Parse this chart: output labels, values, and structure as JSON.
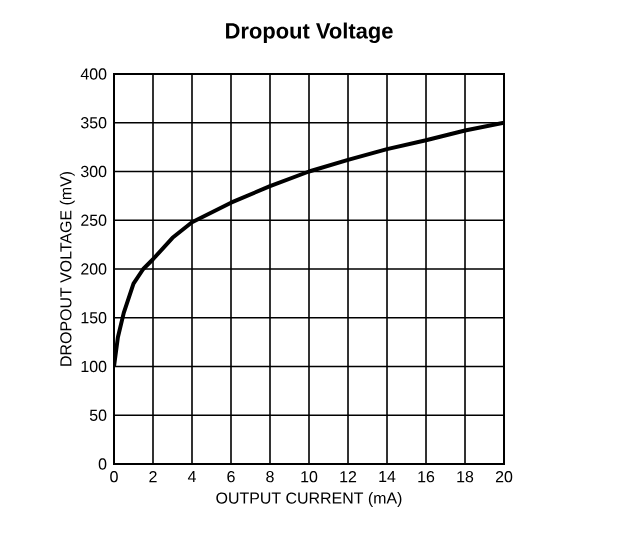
{
  "chart_data": {
    "type": "line",
    "title": "Dropout Voltage",
    "xlabel": "OUTPUT CURRENT (mA)",
    "ylabel": "DROPOUT VOLTAGE (mV)",
    "x": [
      0,
      0.2,
      0.5,
      1,
      1.5,
      2,
      3,
      4,
      6,
      8,
      10,
      12,
      14,
      16,
      18,
      20
    ],
    "series": [
      {
        "color": "#000000",
        "values": [
          100,
          130,
          155,
          185,
          200,
          210,
          232,
          248,
          268,
          285,
          300,
          312,
          323,
          332,
          342,
          350
        ]
      }
    ],
    "xlim": [
      0,
      20
    ],
    "ylim": [
      0,
      400
    ],
    "xticks": [
      0,
      2,
      4,
      6,
      8,
      10,
      12,
      14,
      16,
      18,
      20
    ],
    "yticks": [
      0,
      50,
      100,
      150,
      200,
      250,
      300,
      350,
      400
    ],
    "grid": true,
    "marker": "none",
    "line_style": "solid"
  }
}
